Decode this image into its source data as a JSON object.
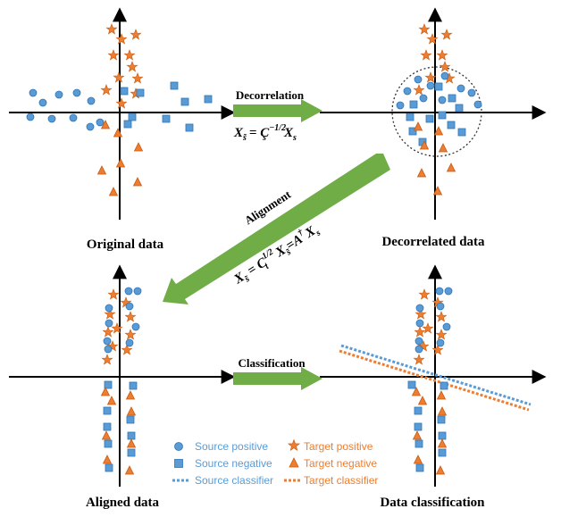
{
  "panels": {
    "original": "Original data",
    "decorrelated": "Decorrelated data",
    "aligned": "Aligned data",
    "classified": "Data classification"
  },
  "operations": {
    "decorrelation": "Decorrelation",
    "alignment": "Alignment",
    "classification": "Classification"
  },
  "equations": {
    "decorrelation": {
      "lhs": "X",
      "lhs_sub": "s̃",
      "eq": "= C",
      "c_sub": "s",
      "c_sup": "−1/2",
      "rhs": "X",
      "rhs_sub": "s"
    },
    "alignment": {
      "lhs": "X",
      "lhs_sub": "s̃",
      "eq": " = C",
      "c_sub": "t",
      "c_sup": "1/2",
      "mid": " X",
      "mid_sub": "s̃",
      "eq2": "=A",
      "a_sup": "†",
      "rhs": "X",
      "rhs_sub": "s"
    }
  },
  "legend": {
    "source_positive": "Source positive",
    "source_negative": "Source negative",
    "source_classifier": "Source classifier",
    "target_positive": "Target positive",
    "target_negative": "Target negative",
    "target_classifier": "Target classifier"
  },
  "colors": {
    "source": "#5B9BD5",
    "source_stroke": "#2E75B6",
    "target": "#ED7D31",
    "target_stroke": "#C55A11",
    "arrow": "#70AD47",
    "axis": "#000000"
  }
}
